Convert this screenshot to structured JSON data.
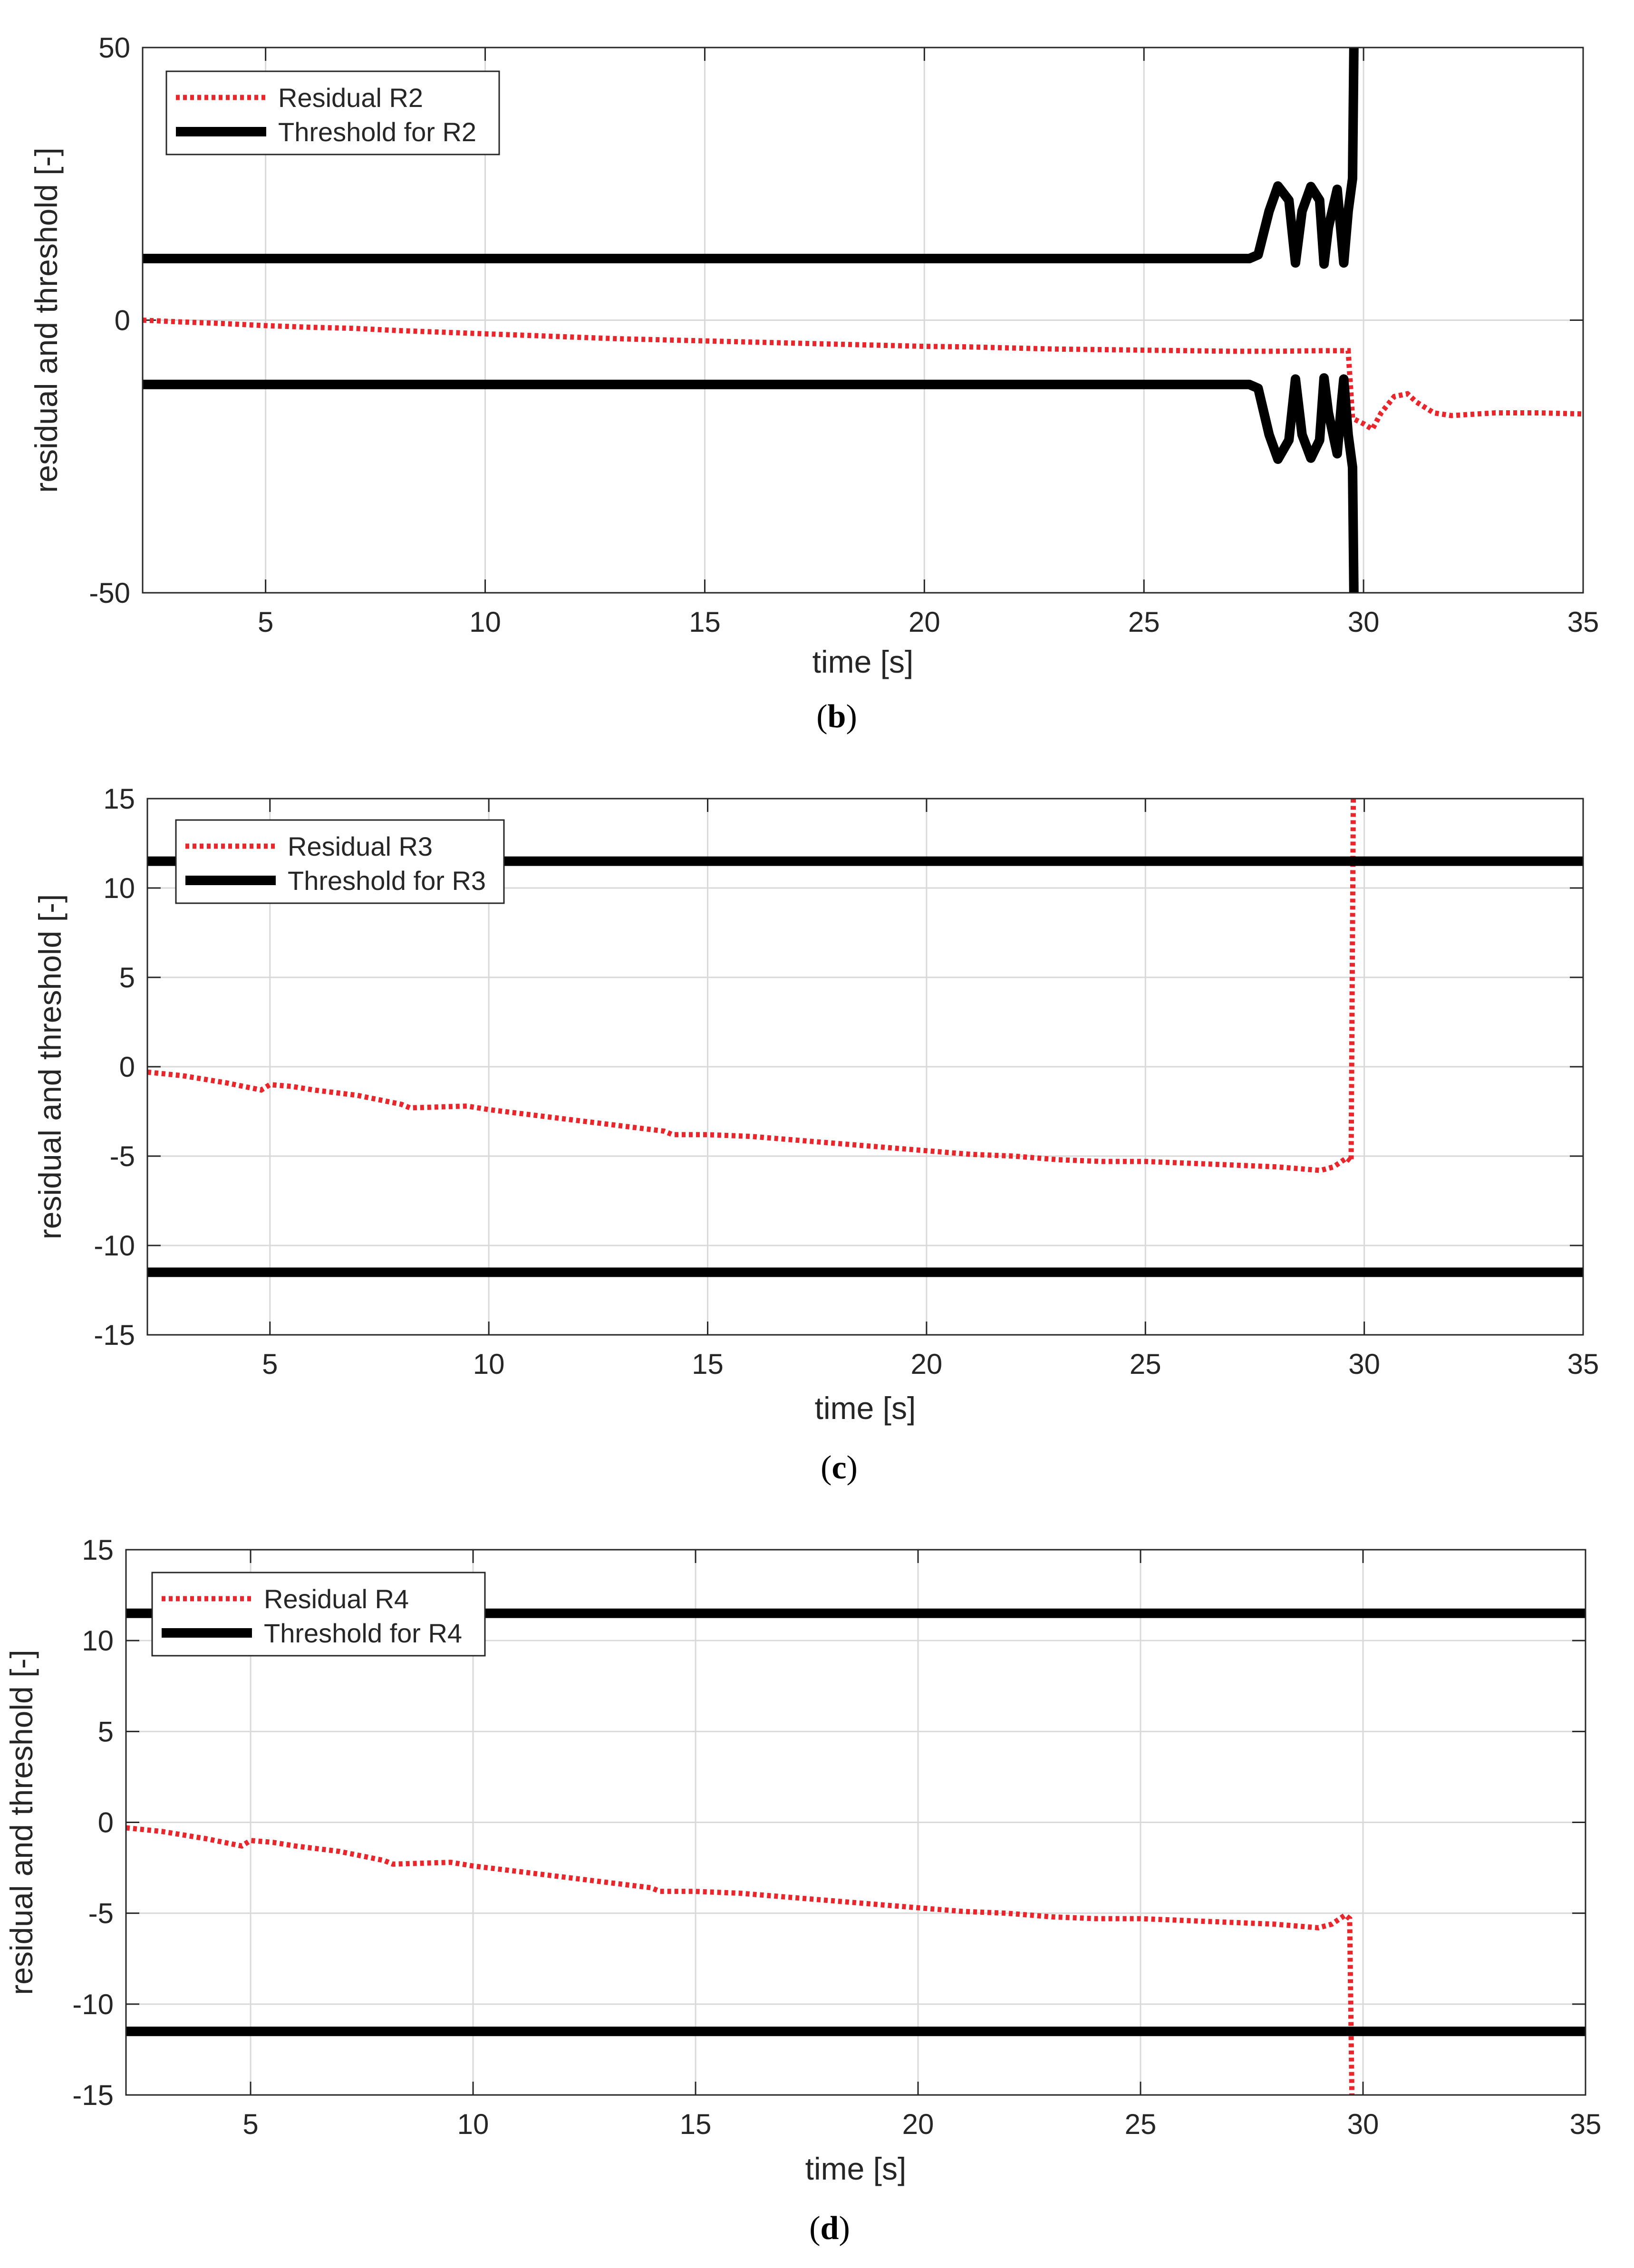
{
  "colors": {
    "residual": "#e8262b",
    "threshold": "#000000",
    "grid": "#d9d9d9",
    "axis": "#262626"
  },
  "chart_data": [
    {
      "type": "line",
      "panel": "b",
      "caption": {
        "open": "(",
        "letter": "b",
        "close": ")"
      },
      "xlabel": "time [s]",
      "ylabel": "residual and threshold [-]",
      "xlim": [
        2.2,
        35
      ],
      "ylim": [
        -50,
        50
      ],
      "xticks": [
        5,
        10,
        15,
        20,
        25,
        30,
        35
      ],
      "xtick_labels": [
        "5",
        "10",
        "15",
        "20",
        "25",
        "30",
        "35"
      ],
      "yticks": [
        -50,
        0,
        50
      ],
      "ytick_labels": [
        "-50",
        "0",
        "50"
      ],
      "grid": true,
      "legend_position": "top-left",
      "series": [
        {
          "name": "Residual R2",
          "style": "dotted",
          "points": [
            [
              2.2,
              0
            ],
            [
              3,
              -0.3
            ],
            [
              4,
              -0.6
            ],
            [
              5,
              -1.0
            ],
            [
              6,
              -1.3
            ],
            [
              7,
              -1.5
            ],
            [
              8,
              -1.9
            ],
            [
              9,
              -2.2
            ],
            [
              10,
              -2.5
            ],
            [
              11,
              -2.8
            ],
            [
              12,
              -3.1
            ],
            [
              13,
              -3.4
            ],
            [
              14,
              -3.6
            ],
            [
              15,
              -3.8
            ],
            [
              16,
              -4.0
            ],
            [
              17,
              -4.2
            ],
            [
              18,
              -4.4
            ],
            [
              19,
              -4.6
            ],
            [
              20,
              -4.8
            ],
            [
              21,
              -4.9
            ],
            [
              22,
              -5.1
            ],
            [
              23,
              -5.3
            ],
            [
              24,
              -5.4
            ],
            [
              25,
              -5.5
            ],
            [
              26,
              -5.6
            ],
            [
              27,
              -5.7
            ],
            [
              28,
              -5.7
            ],
            [
              29,
              -5.6
            ],
            [
              29.65,
              -5.6
            ],
            [
              29.75,
              -18
            ],
            [
              30,
              -19
            ],
            [
              30.2,
              -20
            ],
            [
              30.4,
              -17
            ],
            [
              30.7,
              -14
            ],
            [
              31,
              -13.5
            ],
            [
              31.2,
              -15
            ],
            [
              31.6,
              -17
            ],
            [
              32,
              -17.5
            ],
            [
              33,
              -17
            ],
            [
              34,
              -17
            ],
            [
              35,
              -17.2
            ]
          ]
        },
        {
          "name": "Threshold for R2",
          "style": "solid",
          "segments": [
            [
              [
                2.2,
                11.3
              ],
              [
                27.4,
                11.3
              ],
              [
                27.6,
                12
              ],
              [
                27.85,
                20
              ],
              [
                28.05,
                24.6
              ],
              [
                28.3,
                22
              ],
              [
                28.45,
                10.5
              ],
              [
                28.6,
                20
              ],
              [
                28.8,
                24.5
              ],
              [
                29.0,
                22
              ],
              [
                29.1,
                10.3
              ],
              [
                29.2,
                17
              ],
              [
                29.4,
                24
              ],
              [
                29.5,
                15
              ],
              [
                29.55,
                10.5
              ],
              [
                29.65,
                20
              ],
              [
                29.75,
                26
              ],
              [
                29.78,
                50
              ]
            ],
            [
              [
                2.2,
                -11.8
              ],
              [
                27.4,
                -11.8
              ],
              [
                27.6,
                -12.5
              ],
              [
                27.85,
                -21
              ],
              [
                28.05,
                -25.5
              ],
              [
                28.3,
                -22
              ],
              [
                28.45,
                -10.8
              ],
              [
                28.6,
                -21
              ],
              [
                28.8,
                -25.3
              ],
              [
                29.0,
                -22
              ],
              [
                29.1,
                -10.6
              ],
              [
                29.2,
                -17
              ],
              [
                29.4,
                -24.5
              ],
              [
                29.5,
                -15
              ],
              [
                29.55,
                -10.8
              ],
              [
                29.65,
                -21
              ],
              [
                29.75,
                -27
              ],
              [
                29.78,
                -50
              ]
            ]
          ]
        }
      ]
    },
    {
      "type": "line",
      "panel": "c",
      "caption": {
        "open": "(",
        "letter": "c",
        "close": ")"
      },
      "xlabel": "time [s]",
      "ylabel": "residual and threshold [-]",
      "xlim": [
        2.2,
        35
      ],
      "ylim": [
        -15,
        15
      ],
      "xticks": [
        5,
        10,
        15,
        20,
        25,
        30,
        35
      ],
      "xtick_labels": [
        "5",
        "10",
        "15",
        "20",
        "25",
        "30",
        "35"
      ],
      "yticks": [
        -15,
        -10,
        -5,
        0,
        5,
        10,
        15
      ],
      "ytick_labels": [
        "-15",
        "-10",
        "-5",
        "0",
        "5",
        "10",
        "15"
      ],
      "grid": true,
      "legend_position": "top-left",
      "series": [
        {
          "name": "Residual R3",
          "style": "dotted",
          "points": [
            [
              2.2,
              -0.3
            ],
            [
              3,
              -0.5
            ],
            [
              4,
              -0.9
            ],
            [
              4.8,
              -1.3
            ],
            [
              5,
              -1.0
            ],
            [
              5.5,
              -1.1
            ],
            [
              6,
              -1.3
            ],
            [
              7,
              -1.6
            ],
            [
              8,
              -2.1
            ],
            [
              8.2,
              -2.3
            ],
            [
              9.5,
              -2.2
            ],
            [
              10,
              -2.4
            ],
            [
              11,
              -2.7
            ],
            [
              12,
              -3.0
            ],
            [
              13,
              -3.3
            ],
            [
              14,
              -3.6
            ],
            [
              14.2,
              -3.8
            ],
            [
              15,
              -3.8
            ],
            [
              16,
              -3.9
            ],
            [
              17,
              -4.1
            ],
            [
              18,
              -4.3
            ],
            [
              19,
              -4.5
            ],
            [
              20,
              -4.7
            ],
            [
              21,
              -4.9
            ],
            [
              22,
              -5.0
            ],
            [
              23,
              -5.2
            ],
            [
              24,
              -5.3
            ],
            [
              25,
              -5.3
            ],
            [
              26,
              -5.4
            ],
            [
              27,
              -5.5
            ],
            [
              28,
              -5.6
            ],
            [
              29,
              -5.8
            ],
            [
              29.3,
              -5.6
            ],
            [
              29.6,
              -5.1
            ],
            [
              29.7,
              -5.3
            ],
            [
              29.75,
              15
            ]
          ]
        },
        {
          "name": "Threshold for R3",
          "style": "solid",
          "segments": [
            [
              [
                2.2,
                11.5
              ],
              [
                35,
                11.5
              ]
            ],
            [
              [
                2.2,
                -11.5
              ],
              [
                35,
                -11.5
              ]
            ]
          ]
        }
      ]
    },
    {
      "type": "line",
      "panel": "d",
      "caption": {
        "open": "(",
        "letter": "d",
        "close": ")"
      },
      "xlabel": "time [s]",
      "ylabel": "residual and threshold [-]",
      "xlim": [
        2.2,
        35
      ],
      "ylim": [
        -15,
        15
      ],
      "xticks": [
        5,
        10,
        15,
        20,
        25,
        30,
        35
      ],
      "xtick_labels": [
        "5",
        "10",
        "15",
        "20",
        "25",
        "30",
        "35"
      ],
      "yticks": [
        -15,
        -10,
        -5,
        0,
        5,
        10,
        15
      ],
      "ytick_labels": [
        "-15",
        "-10",
        "-5",
        "0",
        "5",
        "10",
        "15"
      ],
      "grid": true,
      "legend_position": "top-left",
      "series": [
        {
          "name": "Residual R4",
          "style": "dotted",
          "points": [
            [
              2.2,
              -0.3
            ],
            [
              3,
              -0.5
            ],
            [
              4,
              -0.9
            ],
            [
              4.8,
              -1.3
            ],
            [
              5,
              -1.0
            ],
            [
              5.5,
              -1.1
            ],
            [
              6,
              -1.3
            ],
            [
              7,
              -1.6
            ],
            [
              8,
              -2.1
            ],
            [
              8.2,
              -2.3
            ],
            [
              9.5,
              -2.2
            ],
            [
              10,
              -2.4
            ],
            [
              11,
              -2.7
            ],
            [
              12,
              -3.0
            ],
            [
              13,
              -3.3
            ],
            [
              14,
              -3.6
            ],
            [
              14.2,
              -3.8
            ],
            [
              15,
              -3.8
            ],
            [
              16,
              -3.9
            ],
            [
              17,
              -4.1
            ],
            [
              18,
              -4.3
            ],
            [
              19,
              -4.5
            ],
            [
              20,
              -4.7
            ],
            [
              21,
              -4.9
            ],
            [
              22,
              -5.0
            ],
            [
              23,
              -5.2
            ],
            [
              24,
              -5.3
            ],
            [
              25,
              -5.3
            ],
            [
              26,
              -5.4
            ],
            [
              27,
              -5.5
            ],
            [
              28,
              -5.6
            ],
            [
              29,
              -5.8
            ],
            [
              29.3,
              -5.6
            ],
            [
              29.6,
              -5.1
            ],
            [
              29.7,
              -5.3
            ],
            [
              29.75,
              -15
            ]
          ]
        },
        {
          "name": "Threshold for R4",
          "style": "solid",
          "segments": [
            [
              [
                2.2,
                11.5
              ],
              [
                35,
                11.5
              ]
            ],
            [
              [
                2.2,
                -11.5
              ],
              [
                35,
                -11.5
              ]
            ]
          ]
        }
      ]
    }
  ]
}
